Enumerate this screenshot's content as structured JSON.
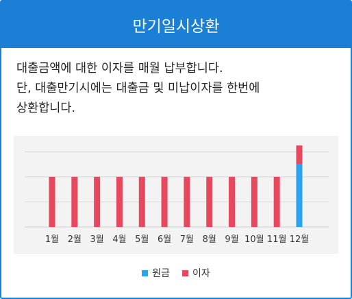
{
  "header": {
    "title": "만기일시상환"
  },
  "description": {
    "lines": [
      "대출금액에 대한 이자를 매월 납부합니다.",
      "단, 대출만기시에는 대출금 및 미납이자를 한번에",
      "상환합니다."
    ]
  },
  "chart_data": {
    "type": "bar",
    "stacked": true,
    "categories": [
      "1월",
      "2월",
      "3월",
      "4월",
      "5월",
      "6월",
      "7월",
      "8월",
      "9월",
      "10월",
      "11월",
      "12월"
    ],
    "series": [
      {
        "name": "원금",
        "color": "#2aa3f0",
        "values": [
          0,
          0,
          0,
          0,
          0,
          0,
          0,
          0,
          0,
          0,
          0,
          100
        ]
      },
      {
        "name": "이자",
        "color": "#e8485e",
        "values": [
          80,
          80,
          80,
          80,
          80,
          80,
          80,
          80,
          80,
          80,
          80,
          30
        ]
      }
    ],
    "ylim": [
      0,
      140
    ],
    "grid": true,
    "legend_position": "bottom"
  }
}
